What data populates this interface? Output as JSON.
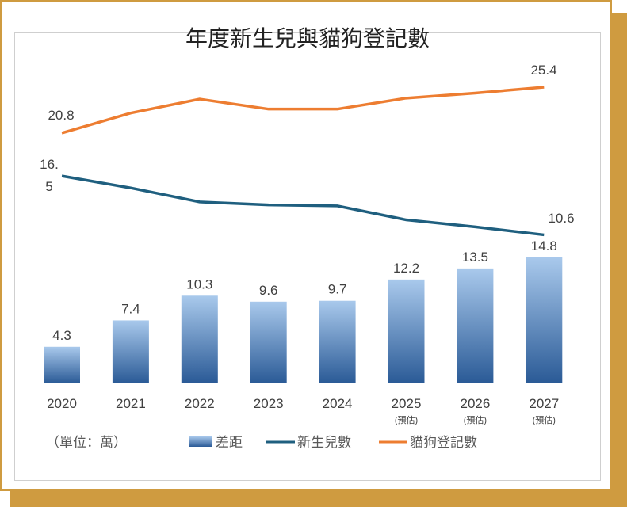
{
  "chart_data": {
    "type": "bar+line",
    "title": "年度新生兒與貓狗登記數",
    "unit_note": "（單位：萬）",
    "categories": [
      "2020",
      "2021",
      "2022",
      "2023",
      "2024",
      "2025",
      "2026",
      "2027"
    ],
    "category_notes": [
      "",
      "",
      "",
      "",
      "",
      "(預估)",
      "(預估)",
      "(預估)"
    ],
    "series": [
      {
        "name": "差距",
        "type": "bar",
        "color": "#2e5f9a",
        "values": [
          4.3,
          7.4,
          10.3,
          9.6,
          9.7,
          12.2,
          13.5,
          14.8
        ],
        "labels": [
          "4.3",
          "7.4",
          "10.3",
          "9.6",
          "9.7",
          "12.2",
          "13.5",
          "14.8"
        ]
      },
      {
        "name": "新生兒數",
        "type": "line",
        "color": "#1f5f7f",
        "values": [
          16.5,
          15.3,
          13.9,
          13.6,
          13.5,
          12.1,
          11.4,
          10.6
        ],
        "labels": [
          {
            "index": 0,
            "lines": [
              "16.",
              "5"
            ]
          },
          {
            "index": 7,
            "lines": [
              "10.6"
            ]
          }
        ]
      },
      {
        "name": "貓狗登記數",
        "type": "line",
        "color": "#ed7d31",
        "values": [
          20.8,
          22.8,
          24.2,
          23.2,
          23.2,
          24.3,
          24.8,
          25.4
        ],
        "labels": [
          {
            "index": 0,
            "lines": [
              "20.8"
            ]
          },
          {
            "index": 7,
            "lines": [
              "25.4"
            ]
          }
        ]
      }
    ],
    "grid": false,
    "legend_position": "bottom"
  }
}
